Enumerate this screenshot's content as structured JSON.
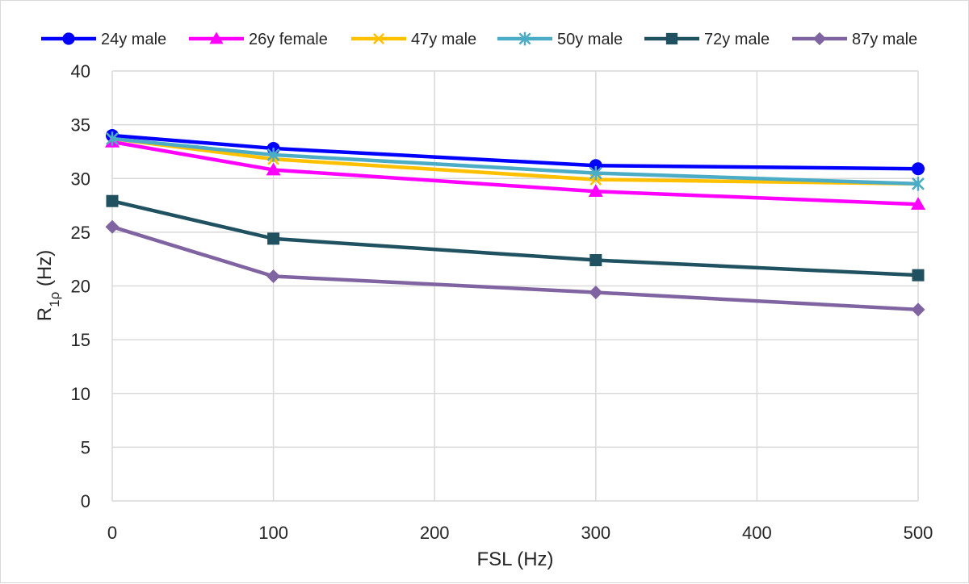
{
  "chart_data": {
    "type": "line",
    "x": [
      0,
      100,
      300,
      500
    ],
    "series": [
      {
        "name": "24y male",
        "values": [
          34.0,
          32.8,
          31.2,
          30.9
        ],
        "color": "#0000FF",
        "marker": "circle"
      },
      {
        "name": "26y female",
        "values": [
          33.4,
          30.8,
          28.8,
          27.6
        ],
        "color": "#FF00FF",
        "marker": "triangle"
      },
      {
        "name": "47y male",
        "values": [
          33.7,
          31.8,
          29.9,
          29.5
        ],
        "color": "#FFC000",
        "marker": "x"
      },
      {
        "name": "50y male",
        "values": [
          33.7,
          32.2,
          30.5,
          29.5
        ],
        "color": "#4BACC6",
        "marker": "star"
      },
      {
        "name": "72y male",
        "values": [
          27.9,
          24.4,
          22.4,
          21.0
        ],
        "color": "#1F5160",
        "marker": "square"
      },
      {
        "name": "87y male",
        "values": [
          25.5,
          20.9,
          19.4,
          17.8
        ],
        "color": "#8064A2",
        "marker": "diamond"
      }
    ],
    "title": "",
    "xlabel": "FSL (Hz)",
    "ylabel_main": "R",
    "ylabel_sub": "1ρ",
    "ylabel_unit": " (Hz)",
    "xlim": [
      0,
      500
    ],
    "ylim": [
      0,
      40
    ],
    "xticks": [
      0,
      100,
      200,
      300,
      400,
      500
    ],
    "xtick_labels": [
      "0",
      "100",
      "200",
      "300",
      "400",
      "500"
    ],
    "yticks": [
      0,
      5,
      10,
      15,
      20,
      25,
      30,
      35,
      40
    ],
    "ytick_labels": [
      "0",
      "5",
      "10",
      "15",
      "20",
      "25",
      "30",
      "35",
      "40"
    ],
    "grid": true,
    "legend_position": "top"
  }
}
